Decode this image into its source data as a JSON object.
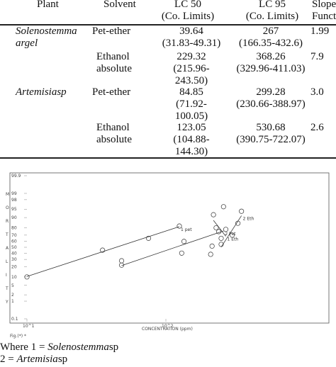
{
  "table": {
    "headers": {
      "plant": "Plant",
      "solvent": "Solvent",
      "lc50": [
        "LC 50",
        "(Co. Limits)"
      ],
      "lc95": [
        "LC 95",
        "(Co. Limits)"
      ],
      "slope": [
        "Slope",
        "Function"
      ]
    },
    "rows": [
      {
        "plant": [
          "Solenostemma",
          "argel"
        ],
        "solvent": [
          "Pet-ether"
        ],
        "lc50": [
          "39.64",
          "(31.83-49.31)"
        ],
        "lc95": [
          "267",
          "(166.35-432.6)"
        ],
        "slope": "1.99"
      },
      {
        "plant": [],
        "solvent": [
          "Ethanol",
          "absolute"
        ],
        "lc50": [
          "229.32",
          "(215.96-",
          "243.50)"
        ],
        "lc95": [
          "368.26",
          "(329.96-411.03)"
        ],
        "slope": "7.9"
      },
      {
        "plant": [
          "Artemisiasp"
        ],
        "solvent": [
          "Pet-ether"
        ],
        "lc50": [
          "84.85",
          "(71.92-",
          "100.05)"
        ],
        "lc95": [
          "299.28",
          "(230.66-388.97)"
        ],
        "slope": "3.0"
      },
      {
        "plant": [],
        "solvent": [
          "Ethanol",
          "absolute"
        ],
        "lc50": [
          "123.05",
          "(104.88-",
          "144.30)"
        ],
        "lc95": [
          "530.68",
          "(390.75-722.07)"
        ],
        "slope": "2.6"
      }
    ]
  },
  "chart_data": {
    "type": "scatter",
    "title": "",
    "xlabel": "CONCENTRATION (ppm)",
    "ylabel": "MORTALITY (%)",
    "x_scale": "log",
    "y_scale": "probit",
    "xlim": [
      10,
      1000
    ],
    "ylim": [
      0.1,
      99.9
    ],
    "x_tick_labels": [
      "10^1",
      "10^2"
    ],
    "y_tick_labels": [
      "99.9",
      "99",
      "98",
      "95",
      "90",
      "80",
      "70",
      "60",
      "50",
      "40",
      "30",
      "20",
      "10",
      "5",
      "2",
      "1",
      "0.1"
    ],
    "y_axis_letters": [
      "M",
      "O",
      "R",
      "T",
      "A",
      "L",
      "I",
      "T",
      "Y"
    ],
    "series": [
      {
        "name": "1 pet",
        "points": [
          [
            10,
            10
          ],
          [
            35,
            45
          ],
          [
            75,
            65
          ],
          [
            125,
            82
          ]
        ]
      },
      {
        "name": "2 Pet",
        "points": [
          [
            48,
            22
          ],
          [
            48,
            28
          ],
          [
            130,
            40
          ],
          [
            135,
            60
          ],
          [
            210,
            38
          ],
          [
            215,
            52
          ],
          [
            230,
            80
          ],
          [
            260,
            96
          ]
        ]
      },
      {
        "name": "1 Eth",
        "points": [
          [
            220,
            92
          ],
          [
            240,
            75
          ],
          [
            250,
            65
          ],
          [
            270,
            78
          ]
        ]
      },
      {
        "name": "2 Eth",
        "points": [
          [
            250,
            55
          ],
          [
            300,
            70
          ],
          [
            330,
            85
          ],
          [
            350,
            94
          ]
        ]
      }
    ],
    "footnote": "Fig.(*) *"
  },
  "caption": {
    "line1_prefix": "Where 1 = ",
    "line1_name": "Solenostemma",
    "line1_suffix": "sp",
    "line2_prefix": "2 = ",
    "line2_name": "Artemisia",
    "line2_suffix": "sp"
  }
}
